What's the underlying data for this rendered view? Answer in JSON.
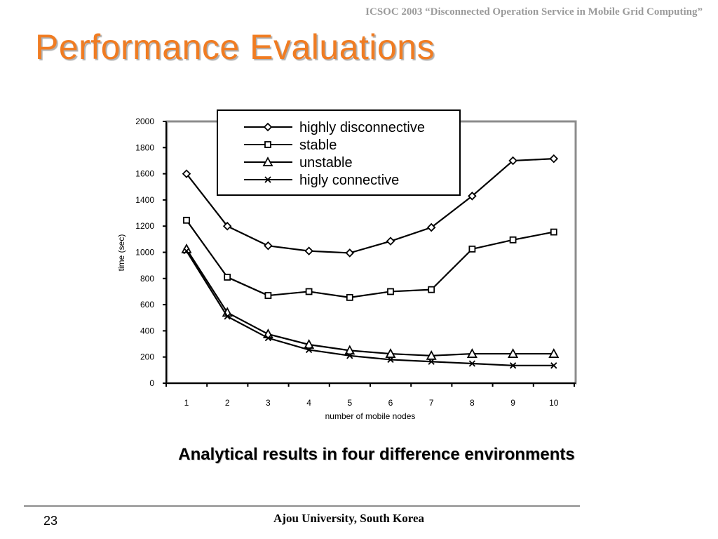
{
  "header": {
    "text": "ICSOC 2003 “Disconnected Operation Service in Mobile Grid Computing”"
  },
  "slide": {
    "title": "Performance Evaluations"
  },
  "caption": "Analytical results in four difference environments",
  "footer": {
    "page_number": "23",
    "text": "Ajou University, South Korea"
  },
  "chart_data": {
    "type": "line",
    "title": "",
    "xlabel": "number of mobile nodes",
    "ylabel": "time (sec)",
    "x": [
      1,
      2,
      3,
      4,
      5,
      6,
      7,
      8,
      9,
      10
    ],
    "xlim": [
      1,
      10
    ],
    "ylim": [
      0,
      2000
    ],
    "yticks": [
      0,
      200,
      400,
      600,
      800,
      1000,
      1200,
      1400,
      1600,
      1800,
      2000
    ],
    "grid": false,
    "legend_position": "top",
    "series": [
      {
        "name": "highly disconnective",
        "marker": "diamond",
        "values": [
          1600,
          1200,
          1050,
          1010,
          995,
          1085,
          1190,
          1430,
          1700,
          1715
        ]
      },
      {
        "name": "stable",
        "marker": "square",
        "values": [
          1245,
          810,
          670,
          700,
          655,
          700,
          715,
          1025,
          1095,
          1155
        ]
      },
      {
        "name": "unstable",
        "marker": "triangle",
        "values": [
          1025,
          540,
          375,
          295,
          250,
          225,
          210,
          225,
          225,
          225
        ]
      },
      {
        "name": "higly connective",
        "marker": "x",
        "values": [
          1010,
          510,
          345,
          255,
          210,
          180,
          165,
          150,
          135,
          135
        ]
      }
    ]
  }
}
